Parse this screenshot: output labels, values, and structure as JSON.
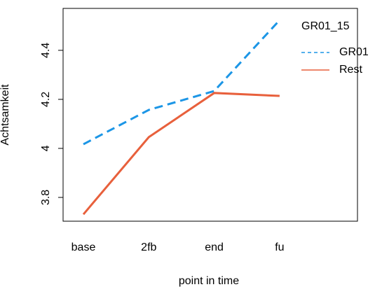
{
  "chart_data": {
    "type": "line",
    "xlabel": "point in time",
    "ylabel": "Achtsamkeit",
    "categories": [
      "base",
      "2fb",
      "end",
      "fu"
    ],
    "series": [
      {
        "name": "GR01",
        "color": "#1c96e6",
        "dash": true,
        "values": [
          4.017,
          4.157,
          4.234,
          4.523
        ]
      },
      {
        "name": "Rest",
        "color": "#e8603c",
        "dash": false,
        "values": [
          3.731,
          4.046,
          4.226,
          4.214
        ]
      }
    ],
    "legend_title": "GR01_15",
    "legend": "top-right",
    "ylim": [
      3.703,
      4.571
    ],
    "yticks": [
      3.8,
      4.0,
      4.2,
      4.4
    ]
  }
}
